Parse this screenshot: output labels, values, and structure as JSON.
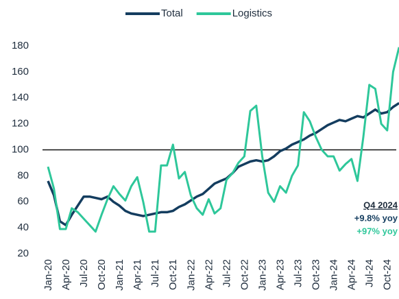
{
  "chart_data": {
    "type": "line",
    "categories": [
      "Jan-20",
      null,
      null,
      "Apr-20",
      null,
      null,
      "Jul-20",
      null,
      null,
      "Oct-20",
      null,
      null,
      "Jan-21",
      null,
      null,
      "Apr-21",
      null,
      null,
      "Jul-21",
      null,
      null,
      "Oct-21",
      null,
      null,
      "Jan-22",
      null,
      null,
      "Apr-22",
      null,
      null,
      "Jul-22",
      null,
      null,
      "Oct-22",
      null,
      null,
      "Jan-23",
      null,
      null,
      "Apr-23",
      null,
      null,
      "Jul-23",
      null,
      null,
      "Oct-23",
      null,
      null,
      "Jan-24",
      null,
      null,
      "Apr-24",
      null,
      null,
      "Jul-24",
      null,
      null,
      "Oct-24",
      null,
      null
    ],
    "series": [
      {
        "name": "Total",
        "color": "#143d5f",
        "values": [
          76,
          65,
          45,
          42,
          50,
          57,
          64,
          64,
          63,
          62,
          64,
          60,
          57,
          53,
          51,
          50,
          49,
          50,
          51,
          52,
          52,
          53,
          56,
          58,
          61,
          64,
          66,
          70,
          74,
          76,
          78,
          82,
          87,
          89,
          91,
          92,
          91,
          92,
          95,
          99,
          101,
          104,
          106,
          108,
          111,
          113,
          116,
          119,
          121,
          123,
          122,
          124,
          126,
          125,
          128,
          131,
          128,
          129,
          133,
          136
        ]
      },
      {
        "name": "Logistics",
        "color": "#2ec79a",
        "values": [
          87,
          70,
          39,
          39,
          55,
          52,
          47,
          42,
          37,
          50,
          62,
          72,
          66,
          61,
          72,
          79,
          60,
          37,
          37,
          88,
          88,
          104,
          78,
          83,
          65,
          55,
          50,
          62,
          51,
          55,
          77,
          82,
          90,
          95,
          130,
          134,
          95,
          67,
          60,
          72,
          67,
          80,
          88,
          129,
          122,
          110,
          100,
          95,
          95,
          84,
          89,
          93,
          76,
          110,
          150,
          147,
          120,
          115,
          160,
          179
        ]
      }
    ],
    "ylim": [
      20,
      180
    ],
    "yticks": [
      20,
      40,
      60,
      80,
      100,
      120,
      140,
      160,
      180
    ],
    "reference_line": 100,
    "annotations": [
      "Q4 2024",
      "+9.8% yoy",
      "+97% yoy"
    ],
    "legend": "top"
  }
}
